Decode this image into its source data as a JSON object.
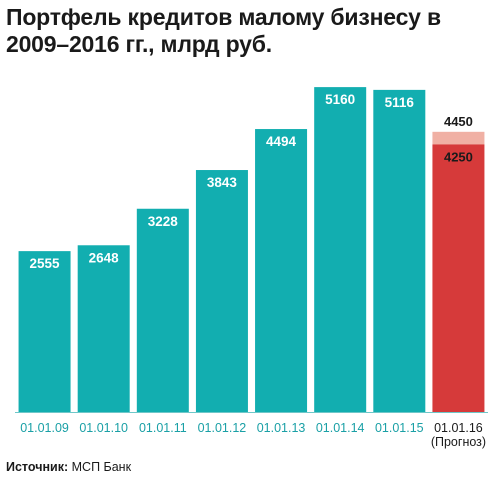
{
  "title": "Портфель кредитов малому бизнесу в 2009–2016 гг., млрд руб.",
  "source": {
    "label": "Источник:",
    "value": "МСП Банк"
  },
  "colors": {
    "bar": "#12aeb0",
    "forecast_bar": "#d63a3a",
    "forecast_band": "#f0b0a4",
    "axis": "#1aa0a6"
  },
  "chart_data": {
    "type": "bar",
    "categories": [
      "01.01.09",
      "01.01.10",
      "01.01.11",
      "01.01.12",
      "01.01.13",
      "01.01.14",
      "01.01.15",
      "01.01.16"
    ],
    "category_notes": [
      "",
      "",
      "",
      "",
      "",
      "",
      "",
      "(Прогноз)"
    ],
    "values": [
      2555,
      2648,
      3228,
      3843,
      4494,
      5160,
      5116,
      4250
    ],
    "forecast": {
      "category": "01.01.16",
      "note": "(Прогноз)",
      "low": 4250,
      "high": 4450
    },
    "ylim": [
      0,
      5400
    ],
    "grid": false,
    "xlabel": "",
    "ylabel": ""
  }
}
